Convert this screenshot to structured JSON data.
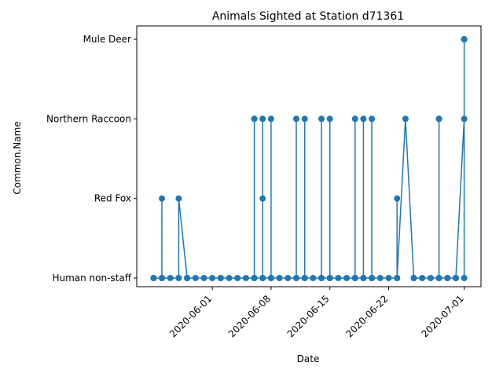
{
  "chart_data": {
    "type": "line",
    "title": "Animals Sighted at Station d71361",
    "xlabel": "Date",
    "ylabel": "Common.Name",
    "categories_y": [
      "Human non-staff",
      "Red Fox",
      "Northern Raccoon",
      "Mule Deer"
    ],
    "x_ticks": [
      "2020-06-01",
      "2020-06-08",
      "2020-06-15",
      "2020-06-22",
      "2020-07-01"
    ],
    "xlim": [
      "2020-05-23",
      "2020-07-03"
    ],
    "grid": false,
    "legend": "none",
    "series_color": "#1f77b4",
    "series": [
      {
        "points": [
          [
            "2020-05-25",
            "Human non-staff"
          ],
          [
            "2020-05-25",
            "Human non-staff"
          ],
          [
            "2020-05-26",
            "Human non-staff"
          ],
          [
            "2020-05-26",
            "Red Fox"
          ],
          [
            "2020-05-26",
            "Human non-staff"
          ],
          [
            "2020-05-27",
            "Human non-staff"
          ],
          [
            "2020-05-28",
            "Human non-staff"
          ],
          [
            "2020-05-28",
            "Red Fox"
          ],
          [
            "2020-05-29",
            "Human non-staff"
          ],
          [
            "2020-05-29",
            "Human non-staff"
          ],
          [
            "2020-05-30",
            "Human non-staff"
          ],
          [
            "2020-05-31",
            "Human non-staff"
          ],
          [
            "2020-06-01",
            "Human non-staff"
          ],
          [
            "2020-06-02",
            "Human non-staff"
          ],
          [
            "2020-06-02",
            "Human non-staff"
          ],
          [
            "2020-06-03",
            "Human non-staff"
          ],
          [
            "2020-06-04",
            "Human non-staff"
          ],
          [
            "2020-06-05",
            "Human non-staff"
          ],
          [
            "2020-06-06",
            "Human non-staff"
          ],
          [
            "2020-06-06",
            "Northern Raccoon"
          ],
          [
            "2020-06-06",
            "Northern Raccoon"
          ],
          [
            "2020-06-06",
            "Human non-staff"
          ],
          [
            "2020-06-07",
            "Human non-staff"
          ],
          [
            "2020-06-07",
            "Northern Raccoon"
          ],
          [
            "2020-06-07",
            "Red Fox"
          ],
          [
            "2020-06-07",
            "Human non-staff"
          ],
          [
            "2020-06-08",
            "Human non-staff"
          ],
          [
            "2020-06-08",
            "Northern Raccoon"
          ],
          [
            "2020-06-08",
            "Human non-staff"
          ],
          [
            "2020-06-09",
            "Human non-staff"
          ],
          [
            "2020-06-10",
            "Human non-staff"
          ],
          [
            "2020-06-11",
            "Human non-staff"
          ],
          [
            "2020-06-11",
            "Northern Raccoon"
          ],
          [
            "2020-06-11",
            "Human non-staff"
          ],
          [
            "2020-06-12",
            "Human non-staff"
          ],
          [
            "2020-06-12",
            "Northern Raccoon"
          ],
          [
            "2020-06-12",
            "Human non-staff"
          ],
          [
            "2020-06-13",
            "Human non-staff"
          ],
          [
            "2020-06-14",
            "Human non-staff"
          ],
          [
            "2020-06-14",
            "Northern Raccoon"
          ],
          [
            "2020-06-14",
            "Human non-staff"
          ],
          [
            "2020-06-15",
            "Human non-staff"
          ],
          [
            "2020-06-15",
            "Northern Raccoon"
          ],
          [
            "2020-06-15",
            "Human non-staff"
          ],
          [
            "2020-06-16",
            "Human non-staff"
          ],
          [
            "2020-06-17",
            "Human non-staff"
          ],
          [
            "2020-06-18",
            "Human non-staff"
          ],
          [
            "2020-06-18",
            "Northern Raccoon"
          ],
          [
            "2020-06-18",
            "Human non-staff"
          ],
          [
            "2020-06-19",
            "Human non-staff"
          ],
          [
            "2020-06-19",
            "Northern Raccoon"
          ],
          [
            "2020-06-19",
            "Human non-staff"
          ],
          [
            "2020-06-20",
            "Human non-staff"
          ],
          [
            "2020-06-20",
            "Northern Raccoon"
          ],
          [
            "2020-06-20",
            "Human non-staff"
          ],
          [
            "2020-06-21",
            "Human non-staff"
          ],
          [
            "2020-06-22",
            "Human non-staff"
          ],
          [
            "2020-06-23",
            "Human non-staff"
          ],
          [
            "2020-06-23",
            "Red Fox"
          ],
          [
            "2020-06-23",
            "Human non-staff"
          ],
          [
            "2020-06-24",
            "Northern Raccoon"
          ],
          [
            "2020-06-25",
            "Human non-staff"
          ],
          [
            "2020-06-25",
            "Human non-staff"
          ],
          [
            "2020-06-26",
            "Human non-staff"
          ],
          [
            "2020-06-27",
            "Human non-staff"
          ],
          [
            "2020-06-28",
            "Human non-staff"
          ],
          [
            "2020-06-28",
            "Northern Raccoon"
          ],
          [
            "2020-06-28",
            "Northern Raccoon"
          ],
          [
            "2020-06-28",
            "Human non-staff"
          ],
          [
            "2020-06-29",
            "Human non-staff"
          ],
          [
            "2020-06-29",
            "Human non-staff"
          ],
          [
            "2020-06-30",
            "Human non-staff"
          ],
          [
            "2020-06-30",
            "Human non-staff"
          ],
          [
            "2020-07-01",
            "Northern Raccoon"
          ],
          [
            "2020-07-01",
            "Mule Deer"
          ],
          [
            "2020-07-01",
            "Mule Deer"
          ],
          [
            "2020-07-01",
            "Mule Deer"
          ],
          [
            "2020-07-01",
            "Human non-staff"
          ]
        ]
      }
    ]
  }
}
